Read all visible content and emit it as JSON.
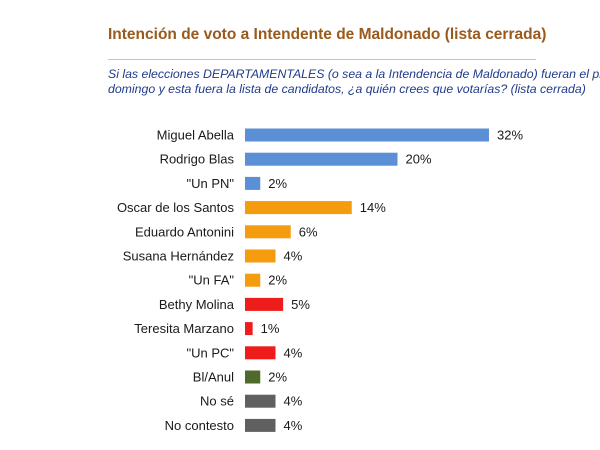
{
  "chart_data": {
    "type": "bar",
    "orientation": "horizontal",
    "title": "Intención de voto a Intendente de Maldonado (lista cerrada)",
    "subtitle_lines": [
      "Si las elecciones DEPARTAMENTALES (o sea a la Intendencia de Maldonado) fueran el próxim",
      "domingo y esta fuera la lista de candidatos, ¿a quién crees que votarías? (lista cerrada)"
    ],
    "categories": [
      "Miguel Abella",
      "Rodrigo Blas",
      "\"Un PN\"",
      "Oscar de los Santos",
      "Eduardo Antonini",
      "Susana Hernández",
      "\"Un FA\"",
      "Bethy Molina",
      "Teresita Marzano",
      "\"Un PC\"",
      "Bl/Anul",
      "No sé",
      "No contesto"
    ],
    "values": [
      32,
      20,
      2,
      14,
      6,
      4,
      2,
      5,
      1,
      4,
      2,
      4,
      4
    ],
    "value_labels": [
      "32%",
      "20%",
      "2%",
      "14%",
      "6%",
      "4%",
      "2%",
      "5%",
      "1%",
      "4%",
      "2%",
      "4%",
      "4%"
    ],
    "colors": [
      "#5b8fd6",
      "#5b8fd6",
      "#5b8fd6",
      "#f59b0e",
      "#f59b0e",
      "#f59b0e",
      "#f59b0e",
      "#ef1c1c",
      "#ef1c1c",
      "#ef1c1c",
      "#4f6a2a",
      "#606060",
      "#606060"
    ],
    "unit": "%",
    "xlim": [
      0,
      32
    ],
    "grid": false,
    "legend": "none"
  }
}
